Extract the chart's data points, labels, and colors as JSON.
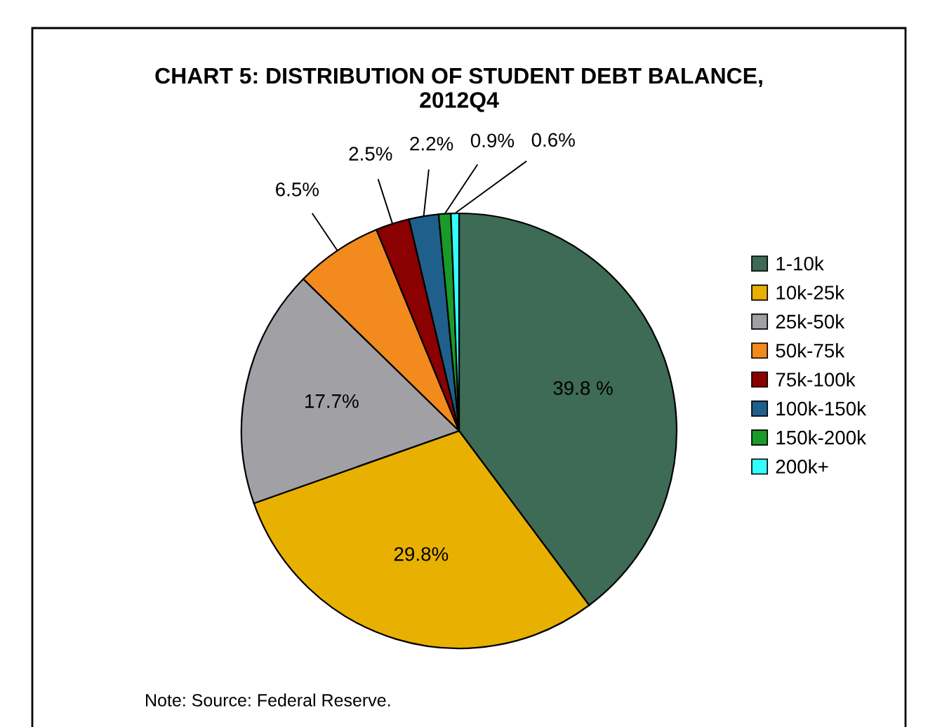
{
  "chart_data": {
    "type": "pie",
    "title": "CHART 5: DISTRIBUTION OF STUDENT DEBT BALANCE,\n2012Q4",
    "categories": [
      "1-10k",
      "10k-25k",
      "25k-50k",
      "50k-75k",
      "75k-100k",
      "100k-150k",
      "150k-200k",
      "200k+"
    ],
    "values": [
      39.8,
      29.8,
      17.7,
      6.5,
      2.5,
      2.2,
      0.9,
      0.6
    ],
    "value_labels": [
      "39.8 %",
      "29.8%",
      "17.7%",
      "6.5%",
      "2.5%",
      "2.2%",
      "0.9%",
      "0.6%"
    ],
    "colors": [
      "#3d6b55",
      "#e8b000",
      "#a0a0a5",
      "#f28a1e",
      "#8b0000",
      "#1f5f8b",
      "#1a9a2a",
      "#33ffff"
    ],
    "legend": "right",
    "annotations": [
      "Note: Source: Federal Reserve."
    ]
  }
}
